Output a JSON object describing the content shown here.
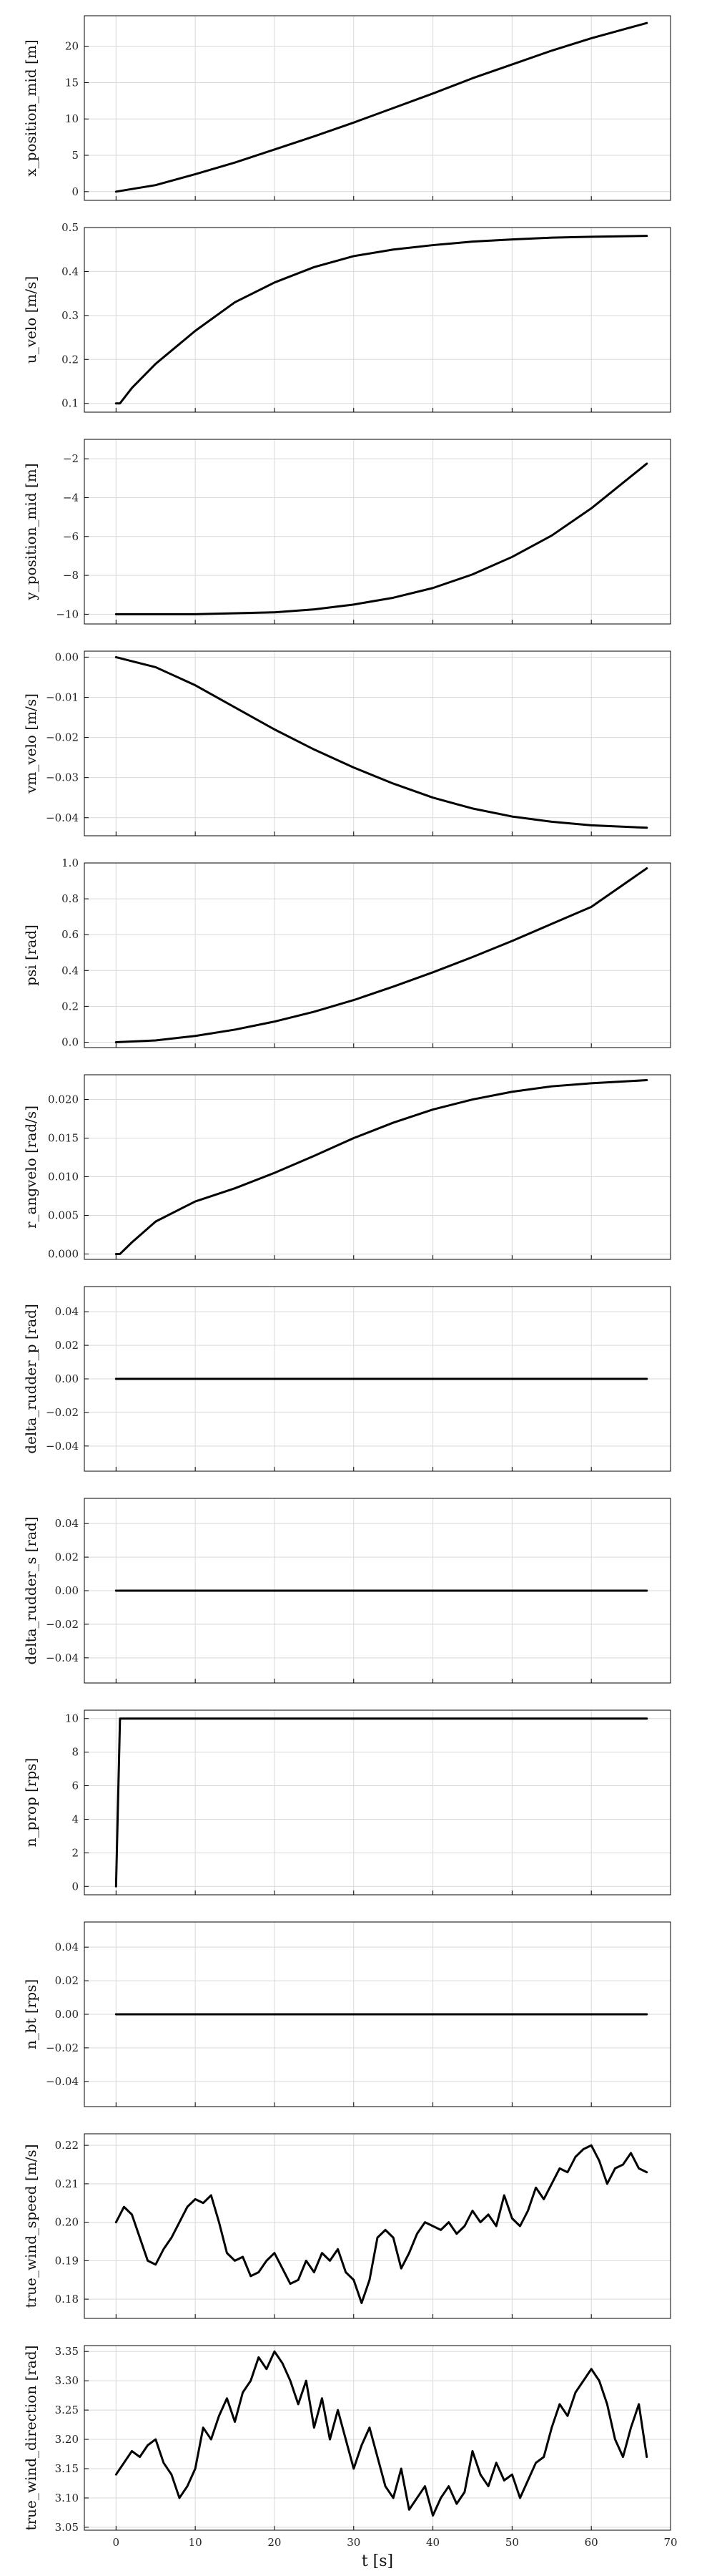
{
  "figure": {
    "xlabel": "t [s]",
    "xlim": [
      -4,
      70
    ],
    "xticks": [
      0,
      10,
      20,
      30,
      40,
      50,
      60,
      70
    ],
    "grid": true
  },
  "chart_data": [
    {
      "type": "line",
      "ylabel": "x_position_mid [m]",
      "ylim": [
        -1.2,
        24.2
      ],
      "yticks": [
        0,
        5,
        10,
        15,
        20
      ],
      "yticklabels": [
        "0",
        "5",
        "10",
        "15",
        "20"
      ],
      "x": [
        0,
        5,
        10,
        15,
        20,
        25,
        30,
        35,
        40,
        45,
        50,
        55,
        60,
        67
      ],
      "y": [
        0,
        0.9,
        2.4,
        4.0,
        5.8,
        7.6,
        9.5,
        11.5,
        13.5,
        15.6,
        17.5,
        19.4,
        21.1,
        23.2
      ]
    },
    {
      "type": "line",
      "ylabel": "u_velo [m/s]",
      "ylim": [
        0.08,
        0.5
      ],
      "yticks": [
        0.1,
        0.2,
        0.3,
        0.4,
        0.5
      ],
      "yticklabels": [
        "0.1",
        "0.2",
        "0.3",
        "0.4",
        "0.5"
      ],
      "x": [
        0,
        0.5,
        2,
        5,
        8,
        10,
        15,
        20,
        25,
        30,
        35,
        40,
        45,
        50,
        55,
        60,
        67
      ],
      "y": [
        0.1,
        0.1,
        0.135,
        0.19,
        0.235,
        0.265,
        0.33,
        0.375,
        0.41,
        0.435,
        0.45,
        0.46,
        0.468,
        0.473,
        0.477,
        0.479,
        0.481
      ]
    },
    {
      "type": "line",
      "ylabel": "y_position_mid [m]",
      "ylim": [
        -10.5,
        -1.0
      ],
      "yticks": [
        -10,
        -8,
        -6,
        -4,
        -2
      ],
      "yticklabels": [
        "−10",
        "−8",
        "−6",
        "−4",
        "−2"
      ],
      "x": [
        0,
        10,
        20,
        25,
        30,
        35,
        40,
        45,
        50,
        55,
        60,
        67
      ],
      "y": [
        -10,
        -10,
        -9.9,
        -9.75,
        -9.5,
        -9.15,
        -8.65,
        -7.95,
        -7.05,
        -5.95,
        -4.55,
        -2.25
      ]
    },
    {
      "type": "line",
      "ylabel": "vm_velo [m/s]",
      "ylim": [
        -0.0445,
        0.0015
      ],
      "yticks": [
        0,
        -0.01,
        -0.02,
        -0.03,
        -0.04
      ],
      "yticklabels": [
        "0.00",
        "−0.01",
        "−0.02",
        "−0.03",
        "−0.04"
      ],
      "x": [
        0,
        5,
        10,
        15,
        20,
        25,
        30,
        35,
        40,
        45,
        50,
        55,
        60,
        67
      ],
      "y": [
        0,
        -0.0025,
        -0.007,
        -0.0125,
        -0.018,
        -0.023,
        -0.0275,
        -0.0315,
        -0.035,
        -0.0377,
        -0.0397,
        -0.041,
        -0.0419,
        -0.0425
      ]
    },
    {
      "type": "line",
      "ylabel": "psi [rad]",
      "ylim": [
        -0.03,
        1.0
      ],
      "yticks": [
        0,
        0.2,
        0.4,
        0.6,
        0.8,
        1.0
      ],
      "yticklabels": [
        "0.0",
        "0.2",
        "0.4",
        "0.6",
        "0.8",
        "1.0"
      ],
      "x": [
        0,
        5,
        10,
        15,
        20,
        25,
        30,
        35,
        40,
        45,
        50,
        55,
        60,
        67
      ],
      "y": [
        0,
        0.01,
        0.035,
        0.07,
        0.115,
        0.17,
        0.235,
        0.31,
        0.39,
        0.475,
        0.565,
        0.66,
        0.755,
        0.97
      ]
    },
    {
      "type": "line",
      "ylabel": "r_angvelo [rad/s]",
      "ylim": [
        -0.0007,
        0.0232
      ],
      "yticks": [
        0,
        0.005,
        0.01,
        0.015,
        0.02
      ],
      "yticklabels": [
        "0.000",
        "0.005",
        "0.010",
        "0.015",
        "0.020"
      ],
      "x": [
        0,
        0.5,
        2,
        5,
        10,
        15,
        20,
        25,
        30,
        35,
        40,
        45,
        50,
        55,
        60,
        67
      ],
      "y": [
        0,
        0,
        0.0015,
        0.0042,
        0.0068,
        0.0085,
        0.0105,
        0.0127,
        0.015,
        0.017,
        0.0187,
        0.02,
        0.021,
        0.0217,
        0.0221,
        0.0225
      ]
    },
    {
      "type": "line",
      "ylabel": "delta_rudder_p [rad]",
      "ylim": [
        -0.055,
        0.055
      ],
      "yticks": [
        0.04,
        0.02,
        0,
        -0.02,
        -0.04
      ],
      "yticklabels": [
        "0.04",
        "0.02",
        "0.00",
        "−0.02",
        "−0.04"
      ],
      "x": [
        0,
        67
      ],
      "y": [
        0,
        0
      ]
    },
    {
      "type": "line",
      "ylabel": "delta_rudder_s [rad]",
      "ylim": [
        -0.055,
        0.055
      ],
      "yticks": [
        0.04,
        0.02,
        0,
        -0.02,
        -0.04
      ],
      "yticklabels": [
        "0.04",
        "0.02",
        "0.00",
        "−0.02",
        "−0.04"
      ],
      "x": [
        0,
        67
      ],
      "y": [
        0,
        0
      ]
    },
    {
      "type": "line",
      "ylabel": "n_prop [rps]",
      "ylim": [
        -0.5,
        10.5
      ],
      "yticks": [
        0,
        2,
        4,
        6,
        8,
        10
      ],
      "yticklabels": [
        "0",
        "2",
        "4",
        "6",
        "8",
        "10"
      ],
      "x": [
        0,
        0.5,
        67
      ],
      "y": [
        0,
        10,
        10
      ]
    },
    {
      "type": "line",
      "ylabel": "n_bt [rps]",
      "ylim": [
        -0.055,
        0.055
      ],
      "yticks": [
        0.04,
        0.02,
        0,
        -0.02,
        -0.04
      ],
      "yticklabels": [
        "0.04",
        "0.02",
        "0.00",
        "−0.02",
        "−0.04"
      ],
      "x": [
        0,
        67
      ],
      "y": [
        0,
        0
      ]
    },
    {
      "type": "line",
      "ylabel": "true_wind_speed [m/s]",
      "ylim": [
        0.175,
        0.223
      ],
      "yticks": [
        0.18,
        0.19,
        0.2,
        0.21,
        0.22
      ],
      "yticklabels": [
        "0.18",
        "0.19",
        "0.20",
        "0.21",
        "0.22"
      ],
      "x": [
        0,
        1,
        2,
        3,
        4,
        5,
        6,
        7,
        8,
        9,
        10,
        11,
        12,
        13,
        14,
        15,
        16,
        17,
        18,
        19,
        20,
        21,
        22,
        23,
        24,
        25,
        26,
        27,
        28,
        29,
        30,
        31,
        32,
        33,
        34,
        35,
        36,
        37,
        38,
        39,
        40,
        41,
        42,
        43,
        44,
        45,
        46,
        47,
        48,
        49,
        50,
        51,
        52,
        53,
        54,
        55,
        56,
        57,
        58,
        59,
        60,
        61,
        62,
        63,
        64,
        65,
        66,
        67
      ],
      "y": [
        0.2,
        0.204,
        0.202,
        0.196,
        0.19,
        0.189,
        0.193,
        0.196,
        0.2,
        0.204,
        0.206,
        0.205,
        0.207,
        0.2,
        0.192,
        0.19,
        0.191,
        0.186,
        0.187,
        0.19,
        0.192,
        0.188,
        0.184,
        0.185,
        0.19,
        0.187,
        0.192,
        0.19,
        0.193,
        0.187,
        0.185,
        0.179,
        0.185,
        0.196,
        0.198,
        0.196,
        0.188,
        0.192,
        0.197,
        0.2,
        0.199,
        0.198,
        0.2,
        0.197,
        0.199,
        0.203,
        0.2,
        0.202,
        0.199,
        0.207,
        0.201,
        0.199,
        0.203,
        0.209,
        0.206,
        0.21,
        0.214,
        0.213,
        0.217,
        0.219,
        0.22,
        0.216,
        0.21,
        0.214,
        0.215,
        0.218,
        0.214,
        0.213
      ]
    },
    {
      "type": "line",
      "ylabel": "true_wind_direction [rad]",
      "ylim": [
        3.045,
        3.36
      ],
      "yticks": [
        3.05,
        3.1,
        3.15,
        3.2,
        3.25,
        3.3,
        3.35
      ],
      "yticklabels": [
        "3.05",
        "3.10",
        "3.15",
        "3.20",
        "3.25",
        "3.30",
        "3.35"
      ],
      "x": [
        0,
        1,
        2,
        3,
        4,
        5,
        6,
        7,
        8,
        9,
        10,
        11,
        12,
        13,
        14,
        15,
        16,
        17,
        18,
        19,
        20,
        21,
        22,
        23,
        24,
        25,
        26,
        27,
        28,
        29,
        30,
        31,
        32,
        33,
        34,
        35,
        36,
        37,
        38,
        39,
        40,
        41,
        42,
        43,
        44,
        45,
        46,
        47,
        48,
        49,
        50,
        51,
        52,
        53,
        54,
        55,
        56,
        57,
        58,
        59,
        60,
        61,
        62,
        63,
        64,
        65,
        66,
        67
      ],
      "y": [
        3.14,
        3.16,
        3.18,
        3.17,
        3.19,
        3.2,
        3.16,
        3.14,
        3.1,
        3.12,
        3.15,
        3.22,
        3.2,
        3.24,
        3.27,
        3.23,
        3.28,
        3.3,
        3.34,
        3.32,
        3.35,
        3.33,
        3.3,
        3.26,
        3.3,
        3.22,
        3.27,
        3.2,
        3.25,
        3.2,
        3.15,
        3.19,
        3.22,
        3.17,
        3.12,
        3.1,
        3.15,
        3.08,
        3.1,
        3.12,
        3.07,
        3.1,
        3.12,
        3.09,
        3.11,
        3.18,
        3.14,
        3.12,
        3.16,
        3.13,
        3.14,
        3.1,
        3.13,
        3.16,
        3.17,
        3.22,
        3.26,
        3.24,
        3.28,
        3.3,
        3.32,
        3.3,
        3.26,
        3.2,
        3.17,
        3.22,
        3.26,
        3.17
      ]
    }
  ]
}
